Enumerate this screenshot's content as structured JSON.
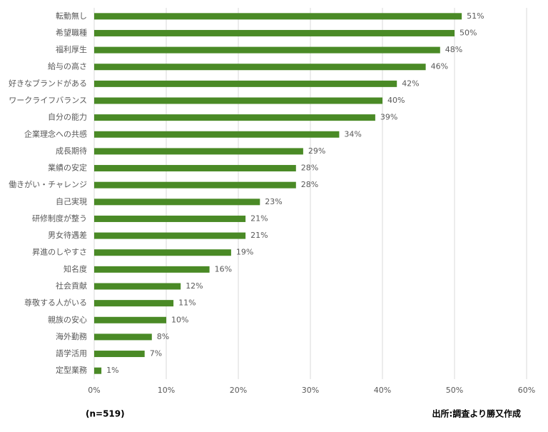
{
  "chart_data": {
    "type": "bar",
    "orientation": "horizontal",
    "categories": [
      "転動無し",
      "希望職種",
      "福利厚生",
      "給与の高さ",
      "好きなブランドがある",
      "ワークライフバランス",
      "自分の能力",
      "企業理念への共感",
      "成長期待",
      "業績の安定",
      "働きがい・チャレンジ",
      "自己実現",
      "研修制度が整う",
      "男女待遇差",
      "昇進のしやすさ",
      "知名度",
      "社会貢献",
      "尊敬する人がいる",
      "親族の安心",
      "海外勤務",
      "語学活用",
      "定型業務"
    ],
    "values": [
      51,
      50,
      48,
      46,
      42,
      40,
      39,
      34,
      29,
      28,
      28,
      23,
      21,
      21,
      19,
      16,
      12,
      11,
      10,
      8,
      7,
      1
    ],
    "value_labels": [
      "51%",
      "50%",
      "48%",
      "46%",
      "42%",
      "40%",
      "39%",
      "34%",
      "29%",
      "28%",
      "28%",
      "23%",
      "21%",
      "21%",
      "19%",
      "16%",
      "12%",
      "11%",
      "10%",
      "8%",
      "7%",
      "1%"
    ],
    "color": "#4a8a26",
    "xlim": [
      0,
      60
    ],
    "xticks": [
      {
        "value": 0,
        "label": "0%"
      },
      {
        "value": 10,
        "label": "10%"
      },
      {
        "value": 20,
        "label": "20%"
      },
      {
        "value": 30,
        "label": "30%"
      },
      {
        "value": 40,
        "label": "40%"
      },
      {
        "value": 50,
        "label": "50%"
      },
      {
        "value": 60,
        "label": "60%"
      }
    ],
    "grid": true,
    "annotations": [
      "(n=519)",
      "出所:調査より勝又作成"
    ]
  }
}
